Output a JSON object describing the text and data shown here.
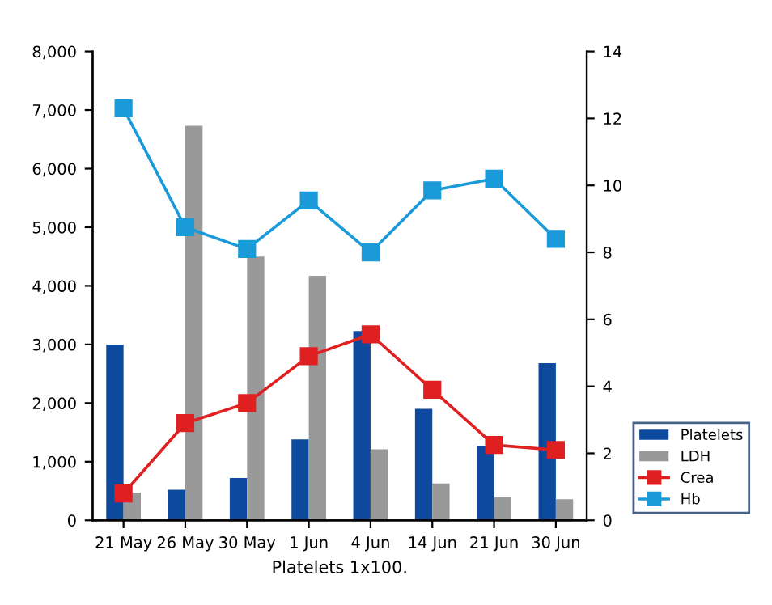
{
  "chart_data": {
    "type": "bar",
    "xlabel": "Platelets 1x100.",
    "categories": [
      "21 May",
      "26 May",
      "30 May",
      "1 Jun",
      "4 Jun",
      "14 Jun",
      "21 Jun",
      "30 Jun"
    ],
    "series": [
      {
        "name": "Platelets",
        "color": "#0d4a9e",
        "values": [
          3000,
          520,
          720,
          1380,
          3230,
          1900,
          1270,
          2680
        ]
      },
      {
        "name": "LDH",
        "color": "#999999",
        "values": [
          470,
          6730,
          4500,
          4170,
          1210,
          630,
          390,
          360
        ]
      },
      {
        "name": "Crea",
        "type": "line",
        "axis": "y2",
        "color": "#e02020",
        "values": [
          0.8,
          2.9,
          3.5,
          4.9,
          5.55,
          3.9,
          2.25,
          2.1
        ]
      },
      {
        "name": "Hb",
        "type": "line",
        "axis": "y2",
        "color": "#1a9ad8",
        "values": [
          12.3,
          8.75,
          8.1,
          9.55,
          8.0,
          9.85,
          10.2,
          8.4
        ]
      }
    ],
    "ylim": [
      0,
      8000
    ],
    "yticks": [
      0,
      {
        "value": 1000,
        "label": "1,000"
      },
      {
        "value": 2000,
        "label": "2,000"
      },
      {
        "value": 3000,
        "label": "3,000"
      },
      {
        "value": 4000,
        "label": "4,000"
      },
      {
        "value": 5000,
        "label": "5,000"
      },
      {
        "value": 6000,
        "label": "6,000"
      },
      {
        "value": 7000,
        "label": "7,000"
      },
      {
        "value": 8000,
        "label": "8,000"
      }
    ],
    "y2lim": [
      0,
      14
    ],
    "y2ticks": [
      0,
      2,
      4,
      6,
      8,
      10,
      12,
      14
    ],
    "marker": "square",
    "legend": "bottom right",
    "grid": false
  }
}
